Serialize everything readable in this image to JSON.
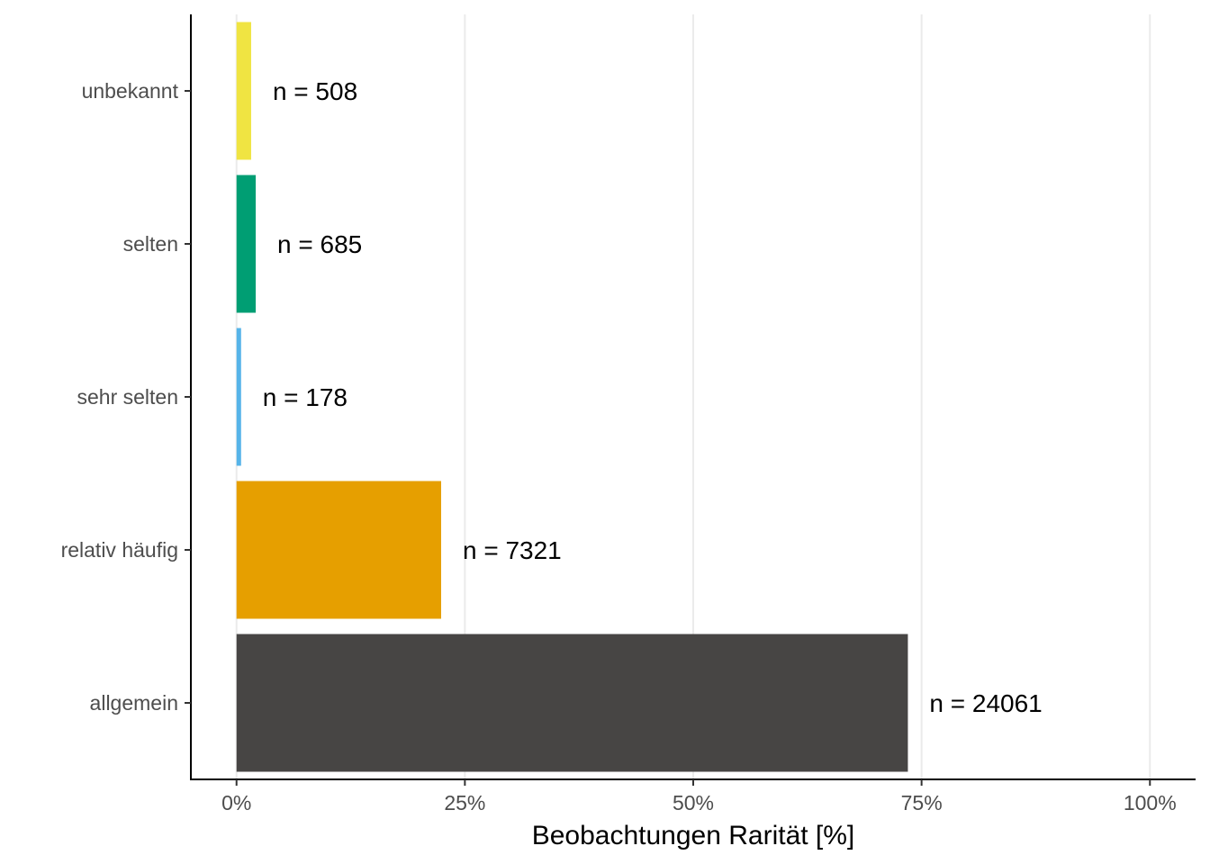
{
  "chart_data": {
    "type": "bar",
    "orientation": "horizontal",
    "categories": [
      "unbekannt",
      "selten",
      "sehr selten",
      "relativ häufig",
      "allgemein"
    ],
    "values": [
      1.6,
      2.1,
      0.5,
      22.4,
      73.5
    ],
    "counts": [
      508,
      685,
      178,
      7321,
      24061
    ],
    "data_labels": [
      "n = 508",
      "n = 685",
      "n = 178",
      "n = 7321",
      "n = 24061"
    ],
    "colors": [
      "#f0e442",
      "#009e73",
      "#56b4e9",
      "#e69f00",
      "#474544"
    ],
    "xlabel": "Beobachtungen Rarität [%]",
    "ylabel": "",
    "xlim": [
      -5,
      105
    ],
    "xticks": [
      0,
      25,
      50,
      75,
      100
    ],
    "xtick_labels": [
      "0%",
      "25%",
      "50%",
      "75%",
      "100%"
    ],
    "grid": "vertical major gridlines",
    "legend": "none"
  }
}
